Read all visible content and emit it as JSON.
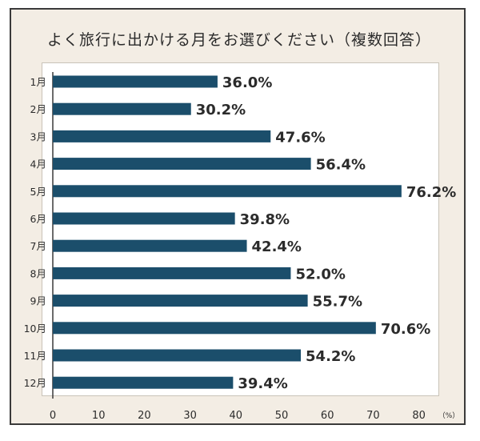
{
  "title": "よく旅行に出かける月をお選びください（複数回答）",
  "chart_data": {
    "type": "bar",
    "orientation": "horizontal",
    "title": "よく旅行に出かける月をお選びください（複数回答）",
    "categories": [
      "1月",
      "2月",
      "3月",
      "4月",
      "5月",
      "6月",
      "7月",
      "8月",
      "9月",
      "10月",
      "11月",
      "12月"
    ],
    "values": [
      36.0,
      30.2,
      47.6,
      56.4,
      76.2,
      39.8,
      42.4,
      52.0,
      55.7,
      70.6,
      54.2,
      39.4
    ],
    "value_labels": [
      "36.0%",
      "30.2%",
      "47.6%",
      "56.4%",
      "76.2%",
      "39.8%",
      "42.4%",
      "52.0%",
      "55.7%",
      "70.6%",
      "54.2%",
      "39.4%"
    ],
    "xticks": [
      "0",
      "10",
      "20",
      "30",
      "40",
      "50",
      "60",
      "70",
      "80"
    ],
    "xlim": [
      0,
      85
    ],
    "unit_label": "（%）",
    "bar_color": "#1b4e6b",
    "grid": false
  }
}
